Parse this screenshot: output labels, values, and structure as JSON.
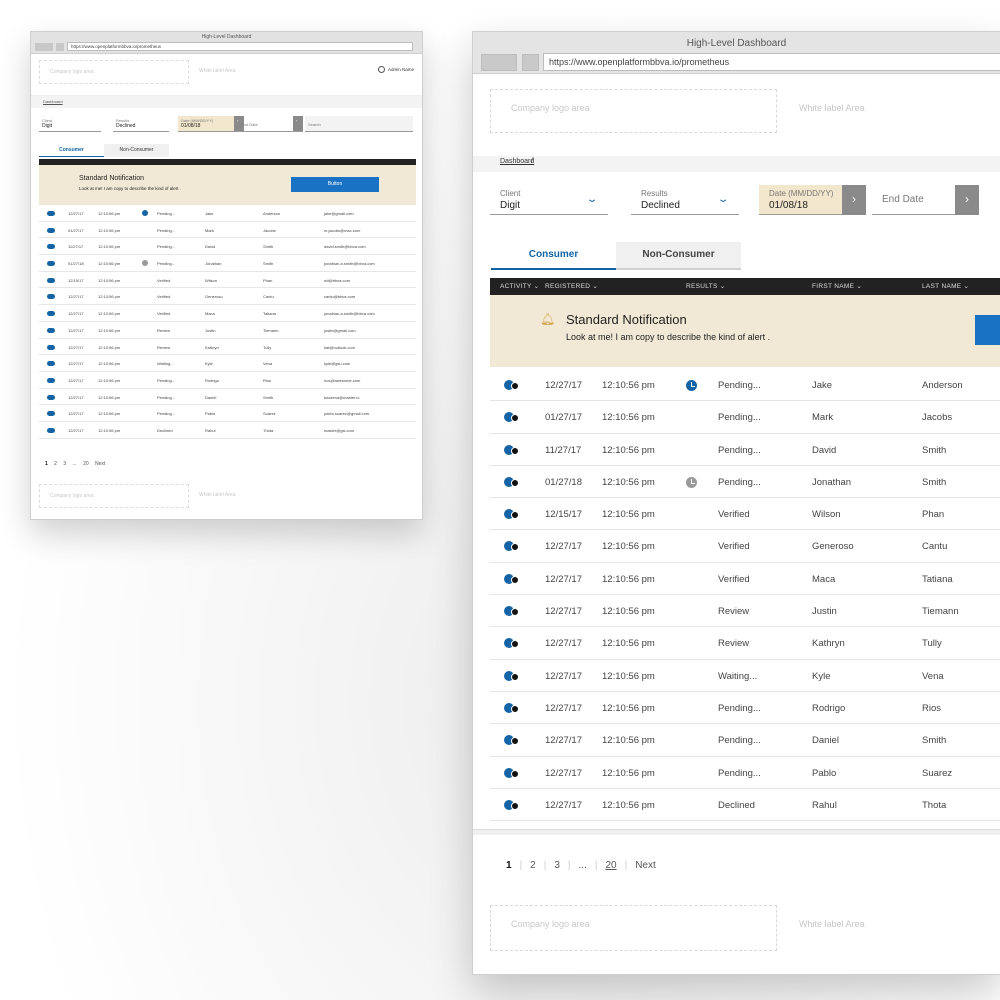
{
  "window": {
    "title": "High-Level Dashboard",
    "url": "https://www.openplatformbbva.io/prometheus"
  },
  "header": {
    "logo_area": "Company logo area",
    "white_label": "White label Area",
    "admin_name": "Admin Name"
  },
  "breadcrumb": {
    "label": "Dashboard",
    "separator": "/"
  },
  "filters": {
    "client": {
      "label": "Client",
      "value": "Digit"
    },
    "results": {
      "label": "Results",
      "value": "Declined"
    },
    "start_date": {
      "label": "Date (MM/DD/YY)",
      "value": "01/08/18"
    },
    "end_date": {
      "label": "End Date"
    },
    "search": {
      "placeholder": "Search"
    }
  },
  "tabs": [
    {
      "label": "Consumer",
      "active": true
    },
    {
      "label": "Non-Consumer",
      "active": false
    }
  ],
  "table": {
    "columns": [
      "ACTIVITY",
      "REGISTERED",
      "RESULTS",
      "FIRST NAME",
      "LAST NAME",
      "EMAIL ADDRESS"
    ],
    "notification": {
      "title": "Standard Notification",
      "text": "Look at me! I am copy to describe the kind of alert .",
      "button": "Button"
    },
    "rows": [
      {
        "date": "12/27/17",
        "time": "12:10:56 pm",
        "status_icon": "clock-blue",
        "result": "Pending...",
        "first": "Jake",
        "last": "Anderson",
        "email": "jake@gmail.com"
      },
      {
        "date": "01/27/17",
        "time": "12:10:56 pm",
        "status_icon": "",
        "result": "Pending...",
        "first": "Mark",
        "last": "Jacobs",
        "email": "m.jacobs@mac.com"
      },
      {
        "date": "11/27/17",
        "time": "12:10:56 pm",
        "status_icon": "",
        "result": "Pending...",
        "first": "David",
        "last": "Smith",
        "email": "david.smith@bbva.com"
      },
      {
        "date": "01/27/18",
        "time": "12:10:56 pm",
        "status_icon": "clock-gray",
        "result": "Pending...",
        "first": "Jonathan",
        "last": "Smith",
        "email": "jonathan.a.smith@bbva.com"
      },
      {
        "date": "12/15/17",
        "time": "12:10:56 pm",
        "status_icon": "",
        "result": "Verified",
        "first": "Wilson",
        "last": "Phan",
        "email": "wil@bbva.com"
      },
      {
        "date": "12/27/17",
        "time": "12:10:56 pm",
        "status_icon": "",
        "result": "Verified",
        "first": "Generoso",
        "last": "Cantu",
        "email": "cantu@bbva.com"
      },
      {
        "date": "12/27/17",
        "time": "12:10:56 pm",
        "status_icon": "",
        "result": "Verified",
        "first": "Maca",
        "last": "Tatiana",
        "email": "jonathan.a.smith@bbva.com"
      },
      {
        "date": "12/27/17",
        "time": "12:10:56 pm",
        "status_icon": "",
        "result": "Review",
        "first": "Justin",
        "last": "Tiemann",
        "email": "justin@gmail.com"
      },
      {
        "date": "12/27/17",
        "time": "12:10:56 pm",
        "status_icon": "",
        "result": "Review",
        "first": "Kathryn",
        "last": "Tully",
        "email": "kat@outlook.com"
      },
      {
        "date": "12/27/17",
        "time": "12:10:56 pm",
        "status_icon": "",
        "result": "Waiting...",
        "first": "Kyle",
        "last": "Vena",
        "email": "kyle@gsu.com"
      },
      {
        "date": "12/27/17",
        "time": "12:10:56 pm",
        "status_icon": "",
        "result": "Pending...",
        "first": "Rodrigo",
        "last": "Rios",
        "email": "rios@awesome.com"
      },
      {
        "date": "12/27/17",
        "time": "12:10:56 pm",
        "status_icon": "",
        "result": "Pending...",
        "first": "Daniel",
        "last": "Smith",
        "email": "backend@master.io"
      },
      {
        "date": "12/27/17",
        "time": "12:10:56 pm",
        "status_icon": "",
        "result": "Pending...",
        "first": "Pablo",
        "last": "Suarez",
        "email": "pablo.suarez@gmail.com"
      },
      {
        "date": "12/27/17",
        "time": "12:10:56 pm",
        "status_icon": "",
        "result": "Declined",
        "first": "Rahul",
        "last": "Thota",
        "email": "master@gsi.com"
      }
    ]
  },
  "pagination": {
    "pages": [
      "1",
      "2",
      "3",
      "...",
      "20"
    ],
    "next": "Next"
  },
  "colors": {
    "accent_blue": "#1464a5",
    "button_blue": "#1972c4",
    "notification_bg": "#f1e9d5",
    "date_bg": "#f2e6cc",
    "header_dark": "#222222"
  }
}
